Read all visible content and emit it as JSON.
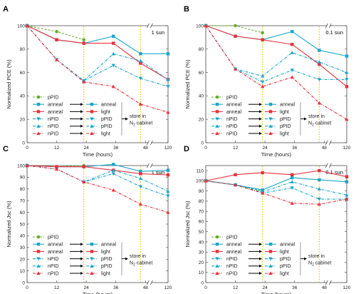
{
  "colors": {
    "pPID": "#6aaa2e",
    "anneal": "#1aa6c8",
    "light": "#e8303a",
    "nPID": "#1aa6c8",
    "guide": "#e8c000",
    "axis": "#444444"
  },
  "chart_data": [
    {
      "panel": "A",
      "type": "line",
      "condition_label": "1 sun",
      "xlabel": "Time (hours)",
      "ylabel": "Normalized PCE (%)",
      "x_ticks": [
        "0",
        "12",
        "24",
        "36",
        "48",
        "120"
      ],
      "y_ticks": [
        0,
        20,
        40,
        60,
        80,
        100
      ],
      "ylim": [
        0,
        100
      ],
      "x_axis_break": true,
      "guide_lines_x": [
        23,
        46
      ],
      "series": [
        {
          "name": "pPID",
          "marker": "circle",
          "style": "dash",
          "color": "pPID",
          "points": [
            [
              0,
              100
            ],
            [
              12,
              95
            ],
            [
              23,
              88
            ]
          ]
        },
        {
          "name": "anneal → anneal",
          "marker": "square",
          "style": "solid",
          "color": "anneal",
          "points": [
            [
              0,
              100
            ],
            [
              12,
              88
            ],
            [
              23,
              85
            ],
            [
              35,
              91
            ],
            [
              46,
              76
            ],
            [
              120,
              76
            ]
          ]
        },
        {
          "name": "anneal → light",
          "marker": "square",
          "style": "solid",
          "color": "light",
          "points": [
            [
              0,
              100
            ],
            [
              12,
              88
            ],
            [
              23,
              85
            ],
            [
              35,
              85
            ],
            [
              46,
              68
            ],
            [
              120,
              54
            ]
          ]
        },
        {
          "name": "nPID → pPID",
          "marker": "triangle-down",
          "style": "dashdot",
          "color": "nPID",
          "points": [
            [
              0,
              100
            ],
            [
              12,
              71
            ],
            [
              23,
              53
            ],
            [
              35,
              66
            ],
            [
              46,
              55
            ],
            [
              120,
              48
            ]
          ]
        },
        {
          "name": "nPID → pPID",
          "marker": "triangle-up",
          "style": "dashdot",
          "color": "nPID",
          "points": [
            [
              0,
              100
            ],
            [
              12,
              71
            ],
            [
              23,
              53
            ],
            [
              35,
              76
            ],
            [
              46,
              70
            ],
            [
              120,
              54
            ]
          ]
        },
        {
          "name": "nPID → light",
          "marker": "triangle-up",
          "style": "dashdot",
          "color": "light",
          "points": [
            [
              0,
              100
            ],
            [
              12,
              71
            ],
            [
              23,
              52
            ],
            [
              35,
              48
            ],
            [
              46,
              33
            ],
            [
              120,
              26
            ]
          ]
        }
      ]
    },
    {
      "panel": "B",
      "type": "line",
      "condition_label": "0.1 sun",
      "xlabel": "Time (hours)",
      "ylabel": "Normalized PCE (%)",
      "x_ticks": [
        "0",
        "12",
        "24",
        "36",
        "48",
        "120"
      ],
      "y_ticks": [
        0,
        20,
        40,
        60,
        80,
        100
      ],
      "ylim": [
        0,
        100
      ],
      "x_axis_break": true,
      "guide_lines_x": [
        23,
        46
      ],
      "series": [
        {
          "name": "pPID",
          "marker": "circle",
          "style": "dash",
          "color": "pPID",
          "points": [
            [
              0,
              100
            ],
            [
              12,
              100
            ],
            [
              23,
              94
            ]
          ]
        },
        {
          "name": "anneal → anneal",
          "marker": "square",
          "style": "solid",
          "color": "anneal",
          "points": [
            [
              0,
              100
            ],
            [
              12,
              91
            ],
            [
              23,
              88
            ],
            [
              35,
              95
            ],
            [
              46,
              79
            ],
            [
              120,
              74
            ]
          ]
        },
        {
          "name": "anneal → light",
          "marker": "square",
          "style": "solid",
          "color": "light",
          "points": [
            [
              0,
              100
            ],
            [
              12,
              91
            ],
            [
              23,
              88
            ],
            [
              35,
              84
            ],
            [
              46,
              67
            ],
            [
              120,
              48
            ]
          ]
        },
        {
          "name": "nPID → pPID",
          "marker": "triangle-down",
          "style": "dashdot",
          "color": "nPID",
          "points": [
            [
              0,
              100
            ],
            [
              12,
              63
            ],
            [
              23,
              52
            ],
            [
              35,
              62
            ],
            [
              46,
              54
            ],
            [
              120,
              54
            ]
          ]
        },
        {
          "name": "nPID → pPID",
          "marker": "triangle-up",
          "style": "dashdot",
          "color": "nPID",
          "points": [
            [
              0,
              100
            ],
            [
              12,
              63
            ],
            [
              23,
              57
            ],
            [
              35,
              77
            ],
            [
              46,
              69
            ],
            [
              120,
              60
            ]
          ]
        },
        {
          "name": "nPID → light",
          "marker": "triangle-up",
          "style": "dashdot",
          "color": "light",
          "points": [
            [
              0,
              100
            ],
            [
              12,
              63
            ],
            [
              23,
              48
            ],
            [
              35,
              56
            ],
            [
              46,
              34
            ],
            [
              120,
              20
            ]
          ]
        }
      ]
    },
    {
      "panel": "C",
      "type": "line",
      "condition_label": "1 sun",
      "xlabel": "Time (hours)",
      "ylabel": "Normalized Jsc (%)",
      "x_ticks": [
        "0",
        "12",
        "24",
        "36",
        "48",
        "120"
      ],
      "y_ticks": [
        0,
        10,
        20,
        30,
        40,
        50,
        60,
        70,
        80,
        90,
        100
      ],
      "ylim": [
        0,
        100
      ],
      "x_axis_break": true,
      "guide_lines_x": [
        23,
        46
      ],
      "series": [
        {
          "name": "pPID",
          "marker": "circle",
          "style": "dash",
          "color": "pPID",
          "points": [
            [
              0,
              100
            ],
            [
              12,
              99
            ],
            [
              23,
              100
            ]
          ]
        },
        {
          "name": "anneal → anneal",
          "marker": "square",
          "style": "solid",
          "color": "anneal",
          "points": [
            [
              0,
              100
            ],
            [
              12,
              99
            ],
            [
              23,
              99
            ],
            [
              35,
              101
            ],
            [
              46,
              95
            ],
            [
              120,
              96
            ]
          ]
        },
        {
          "name": "anneal → light",
          "marker": "square",
          "style": "solid",
          "color": "light",
          "points": [
            [
              0,
              100
            ],
            [
              12,
              99
            ],
            [
              23,
              99
            ],
            [
              35,
              96
            ],
            [
              46,
              93
            ],
            [
              120,
              92
            ]
          ]
        },
        {
          "name": "nPID → pPID",
          "marker": "triangle-down",
          "style": "dashdot",
          "color": "nPID",
          "points": [
            [
              0,
              100
            ],
            [
              12,
              97
            ],
            [
              23,
              86
            ],
            [
              35,
              93
            ],
            [
              46,
              82
            ],
            [
              120,
              74
            ]
          ]
        },
        {
          "name": "nPID → pPID",
          "marker": "triangle-up",
          "style": "dashdot",
          "color": "nPID",
          "points": [
            [
              0,
              100
            ],
            [
              12,
              97
            ],
            [
              23,
              86
            ],
            [
              35,
              96
            ],
            [
              46,
              89
            ],
            [
              120,
              78
            ]
          ]
        },
        {
          "name": "nPID → light",
          "marker": "triangle-up",
          "style": "dashdot",
          "color": "light",
          "points": [
            [
              0,
              100
            ],
            [
              12,
              97
            ],
            [
              23,
              86
            ],
            [
              35,
              79
            ],
            [
              46,
              67
            ],
            [
              120,
              60
            ]
          ]
        }
      ]
    },
    {
      "panel": "D",
      "type": "line",
      "condition_label": "0.1 sun",
      "xlabel": "Time (hours)",
      "ylabel": "Normalized Jsc (%)",
      "x_ticks": [
        "0",
        "12",
        "24",
        "36",
        "48",
        "120"
      ],
      "y_ticks": [
        0,
        10,
        20,
        30,
        40,
        50,
        60,
        70,
        80,
        90,
        100,
        110
      ],
      "ylim": [
        0,
        115
      ],
      "x_axis_break": true,
      "guide_lines_x": [
        23,
        46
      ],
      "series": [
        {
          "name": "pPID",
          "marker": "circle",
          "style": "dash",
          "color": "pPID",
          "points": [
            [
              0,
              100
            ],
            [
              12,
              96
            ],
            [
              23,
              90
            ]
          ]
        },
        {
          "name": "anneal → anneal",
          "marker": "square",
          "style": "solid",
          "color": "anneal",
          "points": [
            [
              0,
              100
            ],
            [
              12,
              96
            ],
            [
              23,
              91
            ],
            [
              35,
              103
            ],
            [
              46,
              101
            ],
            [
              120,
              99
            ]
          ]
        },
        {
          "name": "anneal → light",
          "marker": "square",
          "style": "solid",
          "color": "light",
          "points": [
            [
              0,
              100
            ],
            [
              12,
              106
            ],
            [
              23,
              108
            ],
            [
              35,
              106
            ],
            [
              46,
              110
            ],
            [
              120,
              104
            ]
          ]
        },
        {
          "name": "nPID → pPID",
          "marker": "triangle-down",
          "style": "dashdot",
          "color": "nPID",
          "points": [
            [
              0,
              100
            ],
            [
              12,
              96
            ],
            [
              23,
              88
            ],
            [
              35,
              93
            ],
            [
              46,
              82
            ],
            [
              120,
              82
            ]
          ]
        },
        {
          "name": "nPID → pPID",
          "marker": "triangle-up",
          "style": "dashdot",
          "color": "nPID",
          "points": [
            [
              0,
              100
            ],
            [
              12,
              96
            ],
            [
              23,
              89
            ],
            [
              35,
              99
            ],
            [
              46,
              92
            ],
            [
              120,
              86
            ]
          ]
        },
        {
          "name": "nPID → light",
          "marker": "triangle-up",
          "style": "dashdot",
          "color": "light",
          "points": [
            [
              0,
              100
            ],
            [
              12,
              96
            ],
            [
              23,
              88
            ],
            [
              35,
              78
            ],
            [
              46,
              77
            ],
            [
              120,
              82
            ]
          ]
        }
      ]
    }
  ],
  "legend": {
    "rows": [
      {
        "left": "pPID",
        "left_marker": "circle",
        "left_color": "pPID",
        "left_style": "dash",
        "right": "",
        "right_marker": "",
        "right_color": "",
        "right_style": ""
      },
      {
        "left": "anneal",
        "left_marker": "square",
        "left_color": "anneal",
        "left_style": "solid",
        "right": "anneal",
        "right_marker": "square",
        "right_color": "anneal",
        "right_style": "solid"
      },
      {
        "left": "anneal",
        "left_marker": "square",
        "left_color": "light",
        "left_style": "solid",
        "right": "light",
        "right_marker": "square",
        "right_color": "light",
        "right_style": "solid"
      },
      {
        "left": "nPID",
        "left_marker": "triangle-down",
        "left_color": "nPID",
        "left_style": "dashdot",
        "right": "pPID",
        "right_marker": "triangle-down",
        "right_color": "nPID",
        "right_style": "dashdot"
      },
      {
        "left": "nPID",
        "left_marker": "triangle-up",
        "left_color": "nPID",
        "left_style": "dashdot",
        "right": "pPID",
        "right_marker": "triangle-up",
        "right_color": "nPID",
        "right_style": "dashdot"
      },
      {
        "left": "nPID",
        "left_marker": "triangle-up",
        "left_color": "light",
        "left_style": "dashdot",
        "right": "light",
        "right_marker": "triangle-up",
        "right_color": "light",
        "right_style": "dashdot"
      }
    ],
    "note_line1": "store in",
    "note_line2_main": "N",
    "note_line2_sub": "2",
    "note_line2_rest": " cabinet"
  }
}
